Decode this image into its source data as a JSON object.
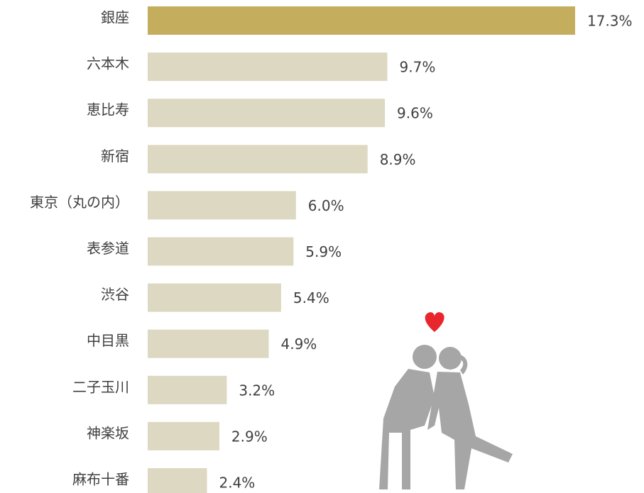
{
  "chart_data": {
    "type": "bar",
    "orientation": "horizontal",
    "categories": [
      "銀座",
      "六本木",
      "恵比寿",
      "新宿",
      "東京（丸の内）",
      "表参道",
      "渋谷",
      "中目黒",
      "二子玉川",
      "神楽坂",
      "麻布十番"
    ],
    "values": [
      17.3,
      9.7,
      9.6,
      8.9,
      6.0,
      5.9,
      5.4,
      4.9,
      3.2,
      2.9,
      2.4
    ],
    "value_labels": [
      "17.3%",
      "9.7%",
      "9.6%",
      "8.9%",
      "6.0%",
      "5.9%",
      "5.4%",
      "4.9%",
      "3.2%",
      "2.9%",
      "2.4%"
    ],
    "colors": [
      "#c4ad5c",
      "#ddd8c1",
      "#ddd8c1",
      "#ddd8c1",
      "#ddd8c1",
      "#ddd8c1",
      "#ddd8c1",
      "#ddd8c1",
      "#ddd8c1",
      "#ddd8c1",
      "#ddd8c1"
    ]
  }
}
